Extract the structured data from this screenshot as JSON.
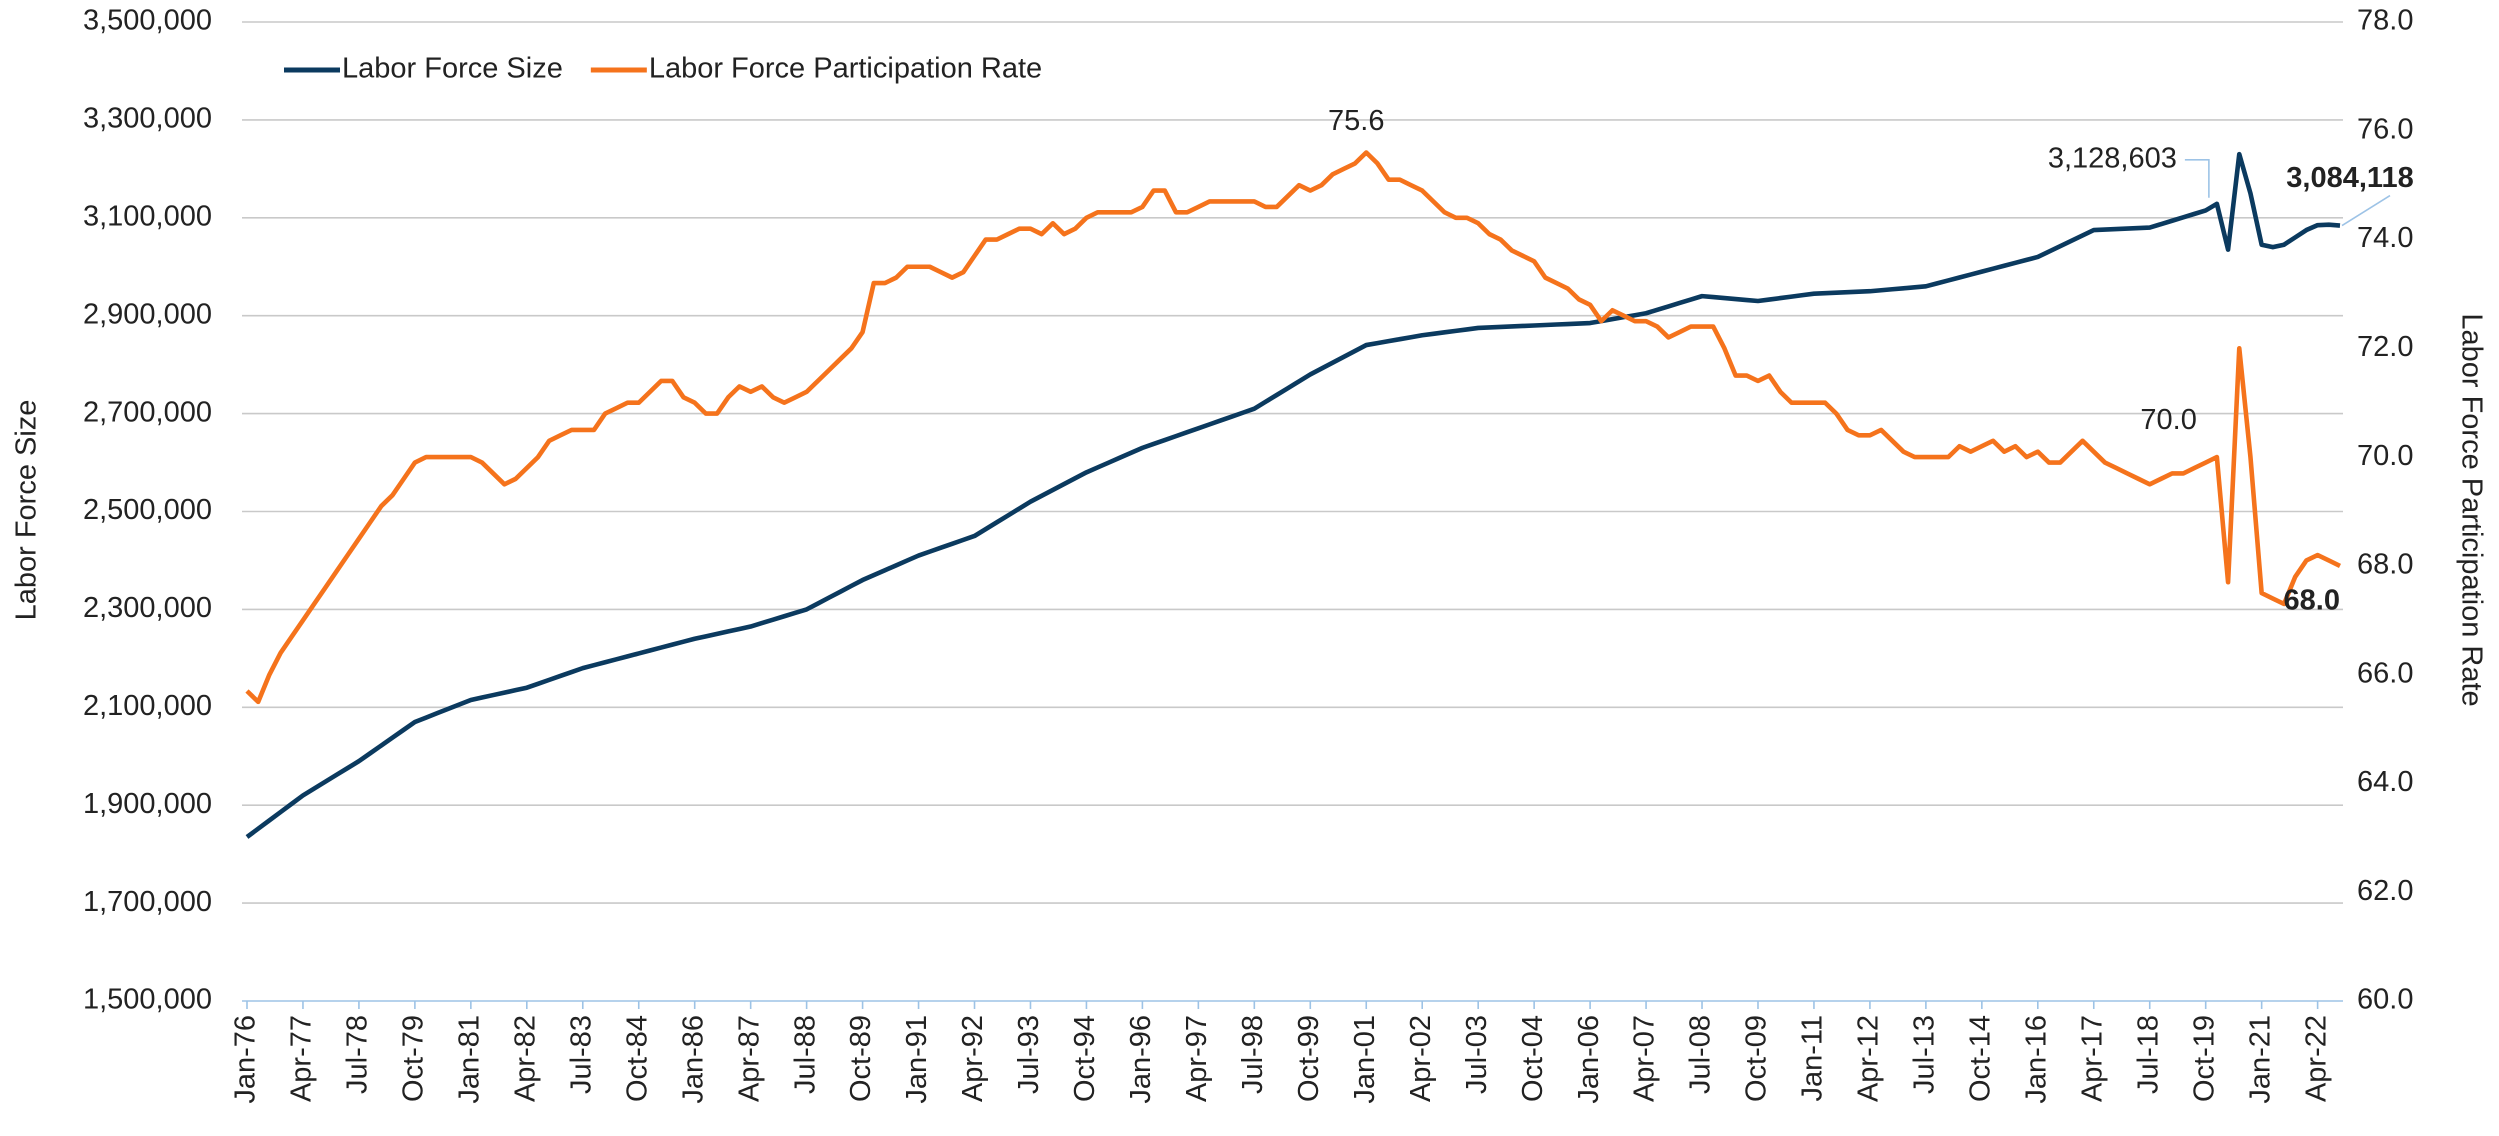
{
  "chart_data": {
    "type": "line",
    "categories": [
      "Jan-76",
      null,
      null,
      null,
      null,
      "Apr-77",
      null,
      null,
      null,
      null,
      "Jul-78",
      null,
      null,
      null,
      null,
      "Oct-79",
      null,
      null,
      null,
      null,
      "Jan-81",
      null,
      null,
      null,
      null,
      "Apr-82",
      null,
      null,
      null,
      null,
      "Jul-83",
      null,
      null,
      null,
      null,
      "Oct-84",
      null,
      null,
      null,
      null,
      "Jan-86",
      null,
      null,
      null,
      null,
      "Apr-87",
      null,
      null,
      null,
      null,
      "Jul-88",
      null,
      null,
      null,
      null,
      "Oct-89",
      null,
      null,
      null,
      null,
      "Jan-91",
      null,
      null,
      null,
      null,
      "Apr-92",
      null,
      null,
      null,
      null,
      "Jul-93",
      null,
      null,
      null,
      null,
      "Oct-94",
      null,
      null,
      null,
      null,
      "Jan-96",
      null,
      null,
      null,
      null,
      "Apr-97",
      null,
      null,
      null,
      null,
      "Jul-98",
      null,
      null,
      null,
      null,
      "Oct-99",
      null,
      null,
      null,
      null,
      "Jan-01",
      null,
      null,
      null,
      null,
      "Apr-02",
      null,
      null,
      null,
      null,
      "Jul-03",
      null,
      null,
      null,
      null,
      "Oct-04",
      null,
      null,
      null,
      null,
      "Jan-06",
      null,
      null,
      null,
      null,
      "Apr-07",
      null,
      null,
      null,
      null,
      "Jul-08",
      null,
      null,
      null,
      null,
      "Oct-09",
      null,
      null,
      null,
      null,
      "Jan-11",
      null,
      null,
      null,
      null,
      "Apr-12",
      null,
      null,
      null,
      null,
      "Jul-13",
      null,
      null,
      null,
      null,
      "Oct-14",
      null,
      null,
      null,
      null,
      "Jan-16",
      null,
      null,
      null,
      null,
      "Apr-17",
      null,
      null,
      null,
      null,
      "Jul-18",
      null,
      null,
      null,
      null,
      "Oct-19",
      null,
      null,
      null,
      null,
      "Jan-21",
      null,
      null,
      null,
      null,
      "Apr-22",
      null,
      null
    ],
    "series": [
      {
        "name": "Labor Force Size",
        "color": "#0b3a5f",
        "axis": "y",
        "values": [
          1835000,
          1852000,
          1869000,
          1886000,
          1903000,
          1920000,
          1934000,
          1948000,
          1962000,
          1976000,
          1990000,
          2006000,
          2022000,
          2038000,
          2054000,
          2070000,
          2079000,
          2088000,
          2097000,
          2106000,
          2115000,
          2120000,
          2125000,
          2130000,
          2135000,
          2140000,
          2148000,
          2156000,
          2164000,
          2172000,
          2180000,
          2186000,
          2192000,
          2198000,
          2204000,
          2210000,
          2216000,
          2222000,
          2228000,
          2234000,
          2240000,
          2245000,
          2250000,
          2255000,
          2260000,
          2265000,
          2272000,
          2279000,
          2286000,
          2293000,
          2300000,
          2312000,
          2324000,
          2336000,
          2348000,
          2360000,
          2370000,
          2380000,
          2390000,
          2400000,
          2410000,
          2418000,
          2426000,
          2434000,
          2442000,
          2450000,
          2464000,
          2478000,
          2492000,
          2506000,
          2520000,
          2532000,
          2544000,
          2556000,
          2568000,
          2580000,
          2590000,
          2600000,
          2610000,
          2620000,
          2630000,
          2638000,
          2646000,
          2654000,
          2662000,
          2670000,
          2678000,
          2686000,
          2694000,
          2702000,
          2710000,
          2724000,
          2738000,
          2752000,
          2766000,
          2780000,
          2792000,
          2804000,
          2816000,
          2828000,
          2840000,
          2844000,
          2848000,
          2852000,
          2856000,
          2860000,
          2863000,
          2866000,
          2869000,
          2872000,
          2875000,
          2876000,
          2877000,
          2878000,
          2879000,
          2880000,
          2881000,
          2882000,
          2883000,
          2884000,
          2885000,
          2889000,
          2893000,
          2897000,
          2901000,
          2905000,
          2912000,
          2919000,
          2926000,
          2933000,
          2940000,
          2938000,
          2936000,
          2934000,
          2932000,
          2930000,
          2933000,
          2936000,
          2939000,
          2942000,
          2945000,
          2946000,
          2947000,
          2948000,
          2949000,
          2950000,
          2952000,
          2954000,
          2956000,
          2958000,
          2960000,
          2966000,
          2972000,
          2978000,
          2984000,
          2990000,
          2996000,
          3002000,
          3008000,
          3014000,
          3020000,
          3031000,
          3042000,
          3053000,
          3064000,
          3075000,
          3076000,
          3077000,
          3078000,
          3079000,
          3080000,
          3087000,
          3094000,
          3101000,
          3108000,
          3115000,
          3128603,
          3035000,
          3230000,
          3150000,
          3045000,
          3040000,
          3045000,
          3060000,
          3075000,
          3085000,
          3086000,
          3084118
        ]
      },
      {
        "name": "Labor Force Participation Rate",
        "color": "#f5731c",
        "axis": "y2",
        "values": [
          65.7,
          65.5,
          66.0,
          66.4,
          66.7,
          67.0,
          67.3,
          67.6,
          67.9,
          68.2,
          68.5,
          68.8,
          69.1,
          69.3,
          69.6,
          69.9,
          70.0,
          70.0,
          70.0,
          70.0,
          70.0,
          69.9,
          69.7,
          69.5,
          69.6,
          69.8,
          70.0,
          70.3,
          70.4,
          70.5,
          70.5,
          70.5,
          70.8,
          70.9,
          71.0,
          71.0,
          71.2,
          71.4,
          71.4,
          71.1,
          71.0,
          70.8,
          70.8,
          71.1,
          71.3,
          71.2,
          71.3,
          71.1,
          71.0,
          71.1,
          71.2,
          71.4,
          71.6,
          71.8,
          72.0,
          72.3,
          73.2,
          73.2,
          73.3,
          73.5,
          73.5,
          73.5,
          73.4,
          73.3,
          73.4,
          73.7,
          74.0,
          74.0,
          74.1,
          74.2,
          74.2,
          74.1,
          74.3,
          74.1,
          74.2,
          74.4,
          74.5,
          74.5,
          74.5,
          74.5,
          74.6,
          74.9,
          74.9,
          74.5,
          74.5,
          74.6,
          74.7,
          74.7,
          74.7,
          74.7,
          74.7,
          74.6,
          74.6,
          74.8,
          75.0,
          74.9,
          75.0,
          75.2,
          75.3,
          75.4,
          75.6,
          75.4,
          75.1,
          75.1,
          75.0,
          74.9,
          74.7,
          74.5,
          74.4,
          74.4,
          74.3,
          74.1,
          74.0,
          73.8,
          73.7,
          73.6,
          73.3,
          73.2,
          73.1,
          72.9,
          72.8,
          72.5,
          72.7,
          72.6,
          72.5,
          72.5,
          72.4,
          72.2,
          72.3,
          72.4,
          72.4,
          72.4,
          72.0,
          71.5,
          71.5,
          71.4,
          71.5,
          71.2,
          71.0,
          71.0,
          71.0,
          71.0,
          70.8,
          70.5,
          70.4,
          70.4,
          70.5,
          70.3,
          70.1,
          70.0,
          70.0,
          70.0,
          70.0,
          70.2,
          70.1,
          70.2,
          70.3,
          70.1,
          70.2,
          70.0,
          70.1,
          69.9,
          69.9,
          70.1,
          70.3,
          70.1,
          69.9,
          69.8,
          69.7,
          69.6,
          69.5,
          69.6,
          69.7,
          69.7,
          69.8,
          69.9,
          70.0,
          67.7,
          72.0,
          70.0,
          67.5,
          67.4,
          67.3,
          67.8,
          68.1,
          68.2,
          68.1,
          68.0
        ]
      }
    ],
    "ylabel": "Labor Force Size",
    "y2label": "Labor Force Participation Rate",
    "ylim": [
      1500000,
      3500000
    ],
    "yticks": [
      {
        "value": 1500000,
        "label": "1,500,000"
      },
      {
        "value": 1700000,
        "label": "1,700,000"
      },
      {
        "value": 1900000,
        "label": "1,900,000"
      },
      {
        "value": 2100000,
        "label": "2,100,000"
      },
      {
        "value": 2300000,
        "label": "2,300,000"
      },
      {
        "value": 2500000,
        "label": "2,500,000"
      },
      {
        "value": 2700000,
        "label": "2,700,000"
      },
      {
        "value": 2900000,
        "label": "2,900,000"
      },
      {
        "value": 3100000,
        "label": "3,100,000"
      },
      {
        "value": 3300000,
        "label": "3,300,000"
      },
      {
        "value": 3500000,
        "label": "3,500,000"
      }
    ],
    "y2lim": [
      60,
      78
    ],
    "y2ticks": [
      {
        "value": 60,
        "label": "60.0"
      },
      {
        "value": 62,
        "label": "62.0"
      },
      {
        "value": 64,
        "label": "64.0"
      },
      {
        "value": 66,
        "label": "66.0"
      },
      {
        "value": 68,
        "label": "68.0"
      },
      {
        "value": 70,
        "label": "70.0"
      },
      {
        "value": 72,
        "label": "72.0"
      },
      {
        "value": 74,
        "label": "74.0"
      },
      {
        "value": 76,
        "label": "76.0"
      },
      {
        "value": 78,
        "label": "78.0"
      }
    ],
    "grid": true,
    "legend": "top-left",
    "annotations": [
      {
        "text": "75.6"
      },
      {
        "text": "70.0"
      },
      {
        "text": "68.0"
      },
      {
        "text": "3,128,603"
      },
      {
        "text": "3,084,118"
      }
    ]
  }
}
